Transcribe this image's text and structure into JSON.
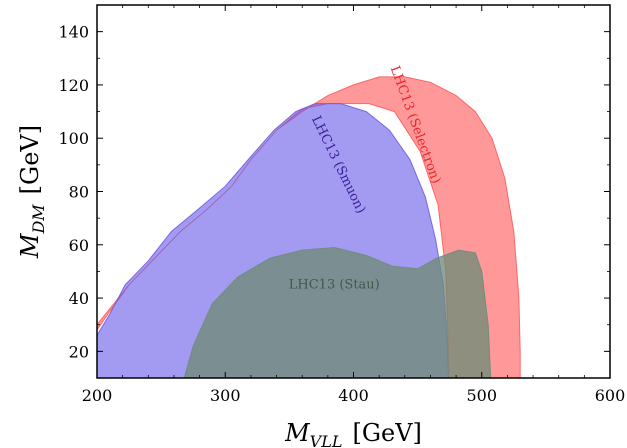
{
  "chart_data": {
    "type": "area",
    "xlabel": "M_VLL  [GeV]",
    "ylabel": "M_DM  [GeV]",
    "xlabel_parts": {
      "main": "M",
      "sub": "VLL",
      "unit": "[GeV]"
    },
    "ylabel_parts": {
      "main": "M",
      "sub": "DM",
      "unit": "[GeV]"
    },
    "xlim": [
      200,
      600
    ],
    "ylim": [
      10,
      150
    ],
    "xticks": [
      200,
      300,
      400,
      500,
      600
    ],
    "yticks": [
      20,
      40,
      60,
      80,
      100,
      120,
      140
    ],
    "grid": false,
    "legend": "none",
    "series": [
      {
        "name": "LHC13 (Selectron)",
        "color": "#ff5a5a",
        "label_color": "#e8262b",
        "points": [
          [
            200,
            28
          ],
          [
            210,
            35
          ],
          [
            225,
            45
          ],
          [
            245,
            55
          ],
          [
            265,
            65
          ],
          [
            285,
            73
          ],
          [
            305,
            82
          ],
          [
            320,
            92
          ],
          [
            340,
            103
          ],
          [
            360,
            110
          ],
          [
            380,
            116
          ],
          [
            400,
            120
          ],
          [
            420,
            123
          ],
          [
            440,
            123
          ],
          [
            460,
            121
          ],
          [
            480,
            116
          ],
          [
            495,
            110
          ],
          [
            508,
            100
          ],
          [
            518,
            85
          ],
          [
            525,
            65
          ],
          [
            529,
            40
          ],
          [
            530,
            20
          ],
          [
            530,
            10
          ],
          [
            474,
            10
          ],
          [
            474,
            20
          ],
          [
            472,
            50
          ],
          [
            466,
            75
          ],
          [
            452,
            95
          ],
          [
            432,
            110
          ],
          [
            412,
            113
          ],
          [
            380,
            113
          ],
          [
            360,
            111
          ],
          [
            340,
            103
          ],
          [
            320,
            92
          ],
          [
            305,
            82
          ],
          [
            285,
            73
          ],
          [
            265,
            65
          ],
          [
            245,
            55
          ],
          [
            225,
            45
          ],
          [
            210,
            36
          ],
          [
            200,
            30
          ]
        ]
      },
      {
        "name": "LHC13 (Smuon)",
        "color": "#6b5ee8",
        "label_color": "#3a1f9a",
        "points": [
          [
            200,
            26
          ],
          [
            210,
            34
          ],
          [
            222,
            45
          ],
          [
            240,
            54
          ],
          [
            258,
            65
          ],
          [
            278,
            73
          ],
          [
            300,
            82
          ],
          [
            318,
            92
          ],
          [
            338,
            103
          ],
          [
            355,
            110
          ],
          [
            370,
            113
          ],
          [
            390,
            113
          ],
          [
            410,
            110
          ],
          [
            428,
            103
          ],
          [
            444,
            92
          ],
          [
            456,
            78
          ],
          [
            464,
            62
          ],
          [
            470,
            45
          ],
          [
            473,
            25
          ],
          [
            474,
            10
          ],
          [
            200,
            10
          ]
        ]
      },
      {
        "name": "LHC13 (Stau)",
        "color": "#6f8c78",
        "label_color": "#3f5a48",
        "points": [
          [
            268,
            10
          ],
          [
            275,
            22
          ],
          [
            290,
            38
          ],
          [
            310,
            48
          ],
          [
            335,
            55
          ],
          [
            360,
            58
          ],
          [
            385,
            59
          ],
          [
            410,
            56
          ],
          [
            430,
            52
          ],
          [
            450,
            51
          ],
          [
            465,
            55
          ],
          [
            482,
            58
          ],
          [
            495,
            57
          ],
          [
            500,
            50
          ],
          [
            505,
            30
          ],
          [
            507,
            10
          ]
        ]
      }
    ],
    "annotations": [
      {
        "text": "LHC13 (Selectron)",
        "x": 448,
        "y": 105,
        "angle_deg": 70
      },
      {
        "text": "LHC13 (Smuon)",
        "x": 388,
        "y": 90,
        "angle_deg": 64
      },
      {
        "text": "LHC13 (Stau)",
        "x": 385,
        "y": 45,
        "angle_deg": 0
      }
    ]
  }
}
